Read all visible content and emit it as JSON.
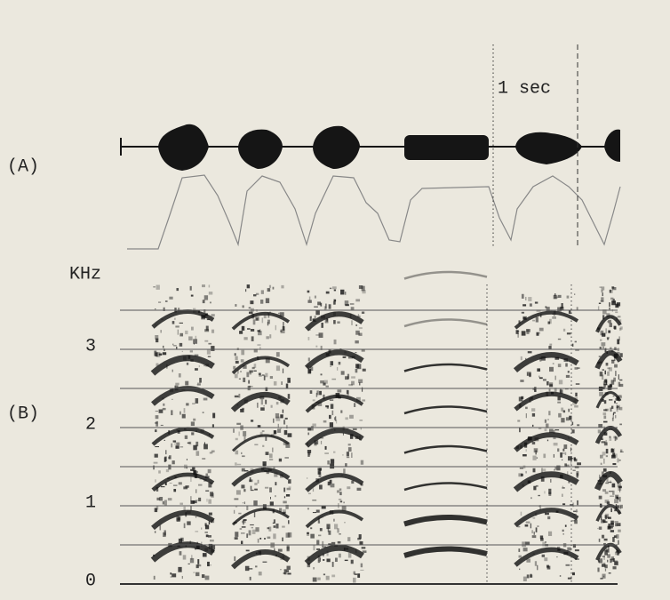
{
  "panel_a": {
    "label": "(A)",
    "scale_label": "1 sec"
  },
  "panel_b": {
    "label": "(B)",
    "axis_label": "KHz",
    "yticks": [
      0,
      1,
      2,
      3
    ]
  }
}
